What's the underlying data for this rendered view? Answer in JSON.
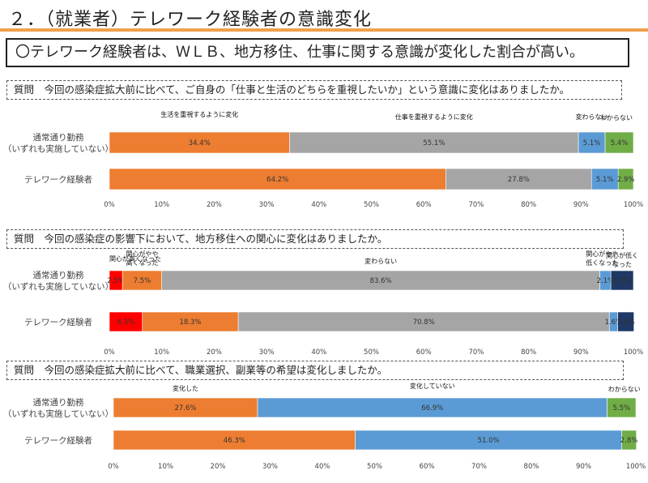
{
  "page": {
    "title": "２．（就業者）テレワーク経験者の意識変化",
    "headline": "〇テレワーク経験者は、ＷＬＢ、地方移住、仕事に関する意識が変化した割合が高い。"
  },
  "colors": {
    "orange": "#ed7d31",
    "gray": "#a5a5a5",
    "blue": "#5b9bd5",
    "green": "#70ad47",
    "red": "#ff0000",
    "navy": "#1f3864"
  },
  "chart_data": [
    {
      "type": "bar",
      "orientation": "horizontal",
      "stacked": true,
      "question": "質問　今回の感染症拡大前に比べて、ご自身の「仕事と生活のどちらを重視したいか」という意識に変化はありましたか。",
      "categories": [
        "通常通り勤務（いずれも実施していない）",
        "テレワーク経験者"
      ],
      "category_lines": [
        [
          "通常通り勤務",
          "（いずれも実施していない）"
        ],
        [
          "テレワーク経験者"
        ]
      ],
      "series": [
        {
          "name": "生活を重視するように変化",
          "color": "#ed7d31",
          "values": [
            34.4,
            64.2
          ],
          "labels": [
            "34.4%",
            "64.2%"
          ]
        },
        {
          "name": "仕事を重視するように変化",
          "color": "#a5a5a5",
          "values": [
            55.1,
            27.8
          ],
          "labels": [
            "55.1%",
            "27.8%"
          ]
        },
        {
          "name": "変わらない",
          "color": "#5b9bd5",
          "values": [
            5.1,
            5.1
          ],
          "labels": [
            "5.1%",
            "5.1%"
          ]
        },
        {
          "name": "わからない",
          "color": "#70ad47",
          "values": [
            5.4,
            2.9
          ],
          "labels": [
            "5.4%",
            "2.9%"
          ]
        }
      ],
      "xlim": [
        0,
        100
      ],
      "xticks": [
        "0%",
        "10%",
        "20%",
        "30%",
        "40%",
        "50%",
        "60%",
        "70%",
        "80%",
        "90%",
        "100%"
      ]
    },
    {
      "type": "bar",
      "orientation": "horizontal",
      "stacked": true,
      "question": "質問　今回の感染症の影響下において、地方移住への関心に変化はありましたか。",
      "categories": [
        "通常通り勤務（いずれも実施していない）",
        "テレワーク経験者"
      ],
      "category_lines": [
        [
          "通常通り勤務",
          "（いずれも実施していない）"
        ],
        [
          "テレワーク経験者"
        ]
      ],
      "series": [
        {
          "name": "関心が高くなった",
          "color": "#ff0000",
          "values": [
            2.5,
            6.3
          ],
          "labels": [
            "2.5%",
            "6.3%"
          ]
        },
        {
          "name": "関心がやや高くなった",
          "name_lines": [
            "関心がやや",
            "高くなった"
          ],
          "color": "#ed7d31",
          "values": [
            7.5,
            18.3
          ],
          "labels": [
            "7.5%",
            "18.3%"
          ]
        },
        {
          "name": "変わらない",
          "color": "#a5a5a5",
          "values": [
            83.6,
            70.8
          ],
          "labels": [
            "83.6%",
            "70.8%"
          ]
        },
        {
          "name": "関心がやや低くなった",
          "name_lines": [
            "関心がやや",
            "低くなった"
          ],
          "color": "#5b9bd5",
          "values": [
            2.1,
            1.6
          ],
          "labels": [
            "2.1%",
            "1.6%"
          ]
        },
        {
          "name": "関心が低くなった",
          "name_lines": [
            "関心が低く",
            "なった"
          ],
          "color": "#1f3864",
          "values": [
            4.3,
            3.1
          ],
          "labels": [
            "4.3%",
            "3.1%"
          ]
        }
      ],
      "xlim": [
        0,
        100
      ],
      "xticks": [
        "0%",
        "10%",
        "20%",
        "30%",
        "40%",
        "50%",
        "60%",
        "70%",
        "80%",
        "90%",
        "100%"
      ]
    },
    {
      "type": "bar",
      "orientation": "horizontal",
      "stacked": true,
      "question": "質問　今回の感染症拡大前に比べて、職業選択、副業等の希望は変化しましたか。",
      "categories": [
        "通常通り勤務（いずれも実施していない）",
        "テレワーク経験者"
      ],
      "category_lines": [
        [
          "通常通り勤務",
          "（いずれも実施していない）"
        ],
        [
          "テレワーク経験者"
        ]
      ],
      "series": [
        {
          "name": "変化した",
          "color": "#ed7d31",
          "values": [
            27.6,
            46.3
          ],
          "labels": [
            "27.6%",
            "46.3%"
          ]
        },
        {
          "name": "変化していない",
          "color": "#5b9bd5",
          "values": [
            66.9,
            51.0
          ],
          "labels": [
            "66.9%",
            "51.0%"
          ]
        },
        {
          "name": "わからない",
          "color": "#70ad47",
          "values": [
            5.5,
            2.8
          ],
          "labels": [
            "5.5%",
            "2.8%"
          ]
        }
      ],
      "xlim": [
        0,
        100
      ],
      "xticks": [
        "0%",
        "10%",
        "20%",
        "30%",
        "40%",
        "50%",
        "60%",
        "70%",
        "80%",
        "90%",
        "100%"
      ]
    }
  ]
}
